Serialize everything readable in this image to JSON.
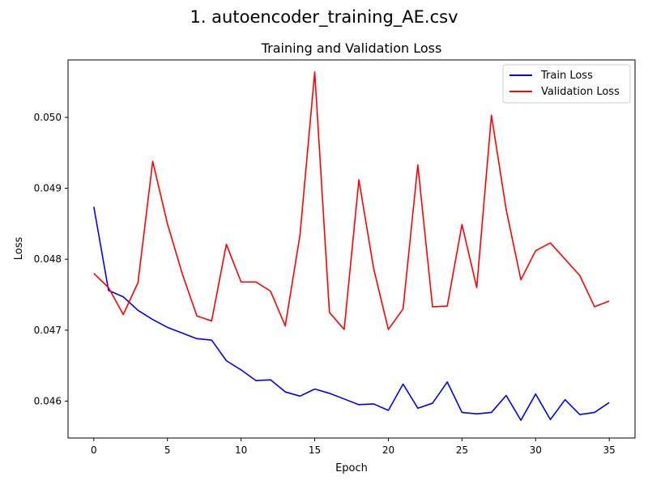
{
  "figure": {
    "suptitle": "1. autoencoder_training_AE.csv"
  },
  "chart_data": {
    "type": "line",
    "title": "Training and Validation Loss",
    "xlabel": "Epoch",
    "ylabel": "Loss",
    "xlim": [
      -1.75,
      36.75
    ],
    "ylim": [
      0.04548,
      0.05081
    ],
    "xticks": [
      0,
      5,
      10,
      15,
      20,
      25,
      30,
      35
    ],
    "xtick_labels": [
      "0",
      "5",
      "10",
      "15",
      "20",
      "25",
      "30",
      "35"
    ],
    "yticks": [
      0.046,
      0.047,
      0.048,
      0.049,
      0.05
    ],
    "ytick_labels": [
      "0.046",
      "0.047",
      "0.048",
      "0.049",
      "0.050"
    ],
    "grid": false,
    "legend_position": "top-right",
    "x": [
      0,
      1,
      2,
      3,
      4,
      5,
      6,
      7,
      8,
      9,
      10,
      11,
      12,
      13,
      14,
      15,
      16,
      17,
      18,
      19,
      20,
      21,
      22,
      23,
      24,
      25,
      26,
      27,
      28,
      29,
      30,
      31,
      32,
      33,
      34,
      35
    ],
    "series": [
      {
        "name": "Train Loss",
        "color": "#0000ff",
        "values": [
          0.04874,
          0.04756,
          0.04747,
          0.04728,
          0.04715,
          0.04704,
          0.04696,
          0.04688,
          0.04686,
          0.04657,
          0.04644,
          0.04629,
          0.0463,
          0.04613,
          0.04607,
          0.04617,
          0.04611,
          0.04603,
          0.04595,
          0.04596,
          0.04587,
          0.04624,
          0.0459,
          0.04597,
          0.04627,
          0.04584,
          0.04582,
          0.04584,
          0.04608,
          0.04573,
          0.0461,
          0.04574,
          0.04602,
          0.04581,
          0.04584,
          0.04598
        ]
      },
      {
        "name": "Validation Loss",
        "color": "#ff0000",
        "values": [
          0.0478,
          0.0476,
          0.04722,
          0.04767,
          0.04938,
          0.0485,
          0.0478,
          0.0472,
          0.04713,
          0.04821,
          0.04768,
          0.04768,
          0.04755,
          0.04706,
          0.04834,
          0.05064,
          0.04725,
          0.04701,
          0.04912,
          0.04787,
          0.04701,
          0.0473,
          0.04933,
          0.04733,
          0.04734,
          0.04849,
          0.0476,
          0.05003,
          0.0487,
          0.04771,
          0.04812,
          0.04823,
          0.048,
          0.04777,
          0.04733,
          0.04741
        ]
      }
    ]
  }
}
